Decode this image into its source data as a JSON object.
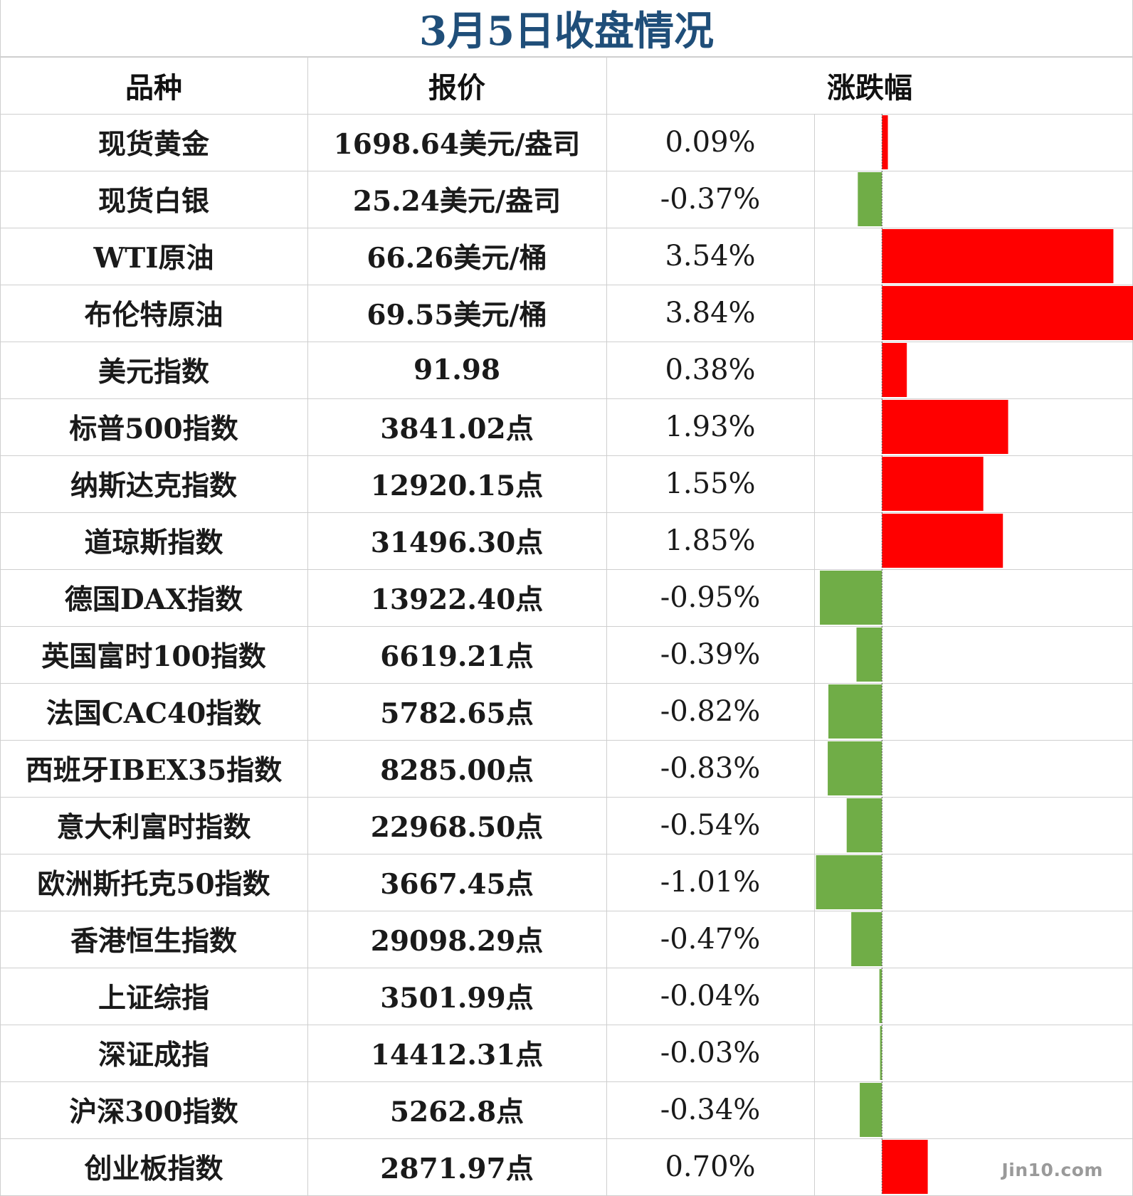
{
  "chart_data": {
    "type": "table",
    "title": "3月5日收盘情况",
    "columns": [
      "品种",
      "报价",
      "涨跌幅"
    ],
    "bar_colors": {
      "positive": "#ff0000",
      "negative": "#70ad47"
    },
    "rows": [
      {
        "name": "现货黄金",
        "price": "1698.64美元/盎司",
        "change_label": "0.09%",
        "change": 0.09
      },
      {
        "name": "现货白银",
        "price": "25.24美元/盎司",
        "change_label": "-0.37%",
        "change": -0.37
      },
      {
        "name": "WTI原油",
        "price": "66.26美元/桶",
        "change_label": "3.54%",
        "change": 3.54
      },
      {
        "name": "布伦特原油",
        "price": "69.55美元/桶",
        "change_label": "3.84%",
        "change": 3.84
      },
      {
        "name": "美元指数",
        "price": "91.98",
        "change_label": "0.38%",
        "change": 0.38
      },
      {
        "name": "标普500指数",
        "price": "3841.02点",
        "change_label": "1.93%",
        "change": 1.93
      },
      {
        "name": "纳斯达克指数",
        "price": "12920.15点",
        "change_label": "1.55%",
        "change": 1.55
      },
      {
        "name": "道琼斯指数",
        "price": "31496.30点",
        "change_label": "1.85%",
        "change": 1.85
      },
      {
        "name": "德国DAX指数",
        "price": "13922.40点",
        "change_label": "-0.95%",
        "change": -0.95
      },
      {
        "name": "英国富时100指数",
        "price": "6619.21点",
        "change_label": "-0.39%",
        "change": -0.39
      },
      {
        "name": "法国CAC40指数",
        "price": "5782.65点",
        "change_label": "-0.82%",
        "change": -0.82
      },
      {
        "name": "西班牙IBEX35指数",
        "price": "8285.00点",
        "change_label": "-0.83%",
        "change": -0.83
      },
      {
        "name": "意大利富时指数",
        "price": "22968.50点",
        "change_label": "-0.54%",
        "change": -0.54
      },
      {
        "name": "欧洲斯托克50指数",
        "price": "3667.45点",
        "change_label": "-1.01%",
        "change": -1.01
      },
      {
        "name": "香港恒生指数",
        "price": "29098.29点",
        "change_label": "-0.47%",
        "change": -0.47
      },
      {
        "name": "上证综指",
        "price": "3501.99点",
        "change_label": "-0.04%",
        "change": -0.04
      },
      {
        "name": "深证成指",
        "price": "14412.31点",
        "change_label": "-0.03%",
        "change": -0.03
      },
      {
        "name": "沪深300指数",
        "price": "5262.8点",
        "change_label": "-0.34%",
        "change": -0.34
      },
      {
        "name": "创业板指数",
        "price": "2871.97点",
        "change_label": "0.70%",
        "change": 0.7
      }
    ]
  },
  "watermark": "Jin10.com"
}
